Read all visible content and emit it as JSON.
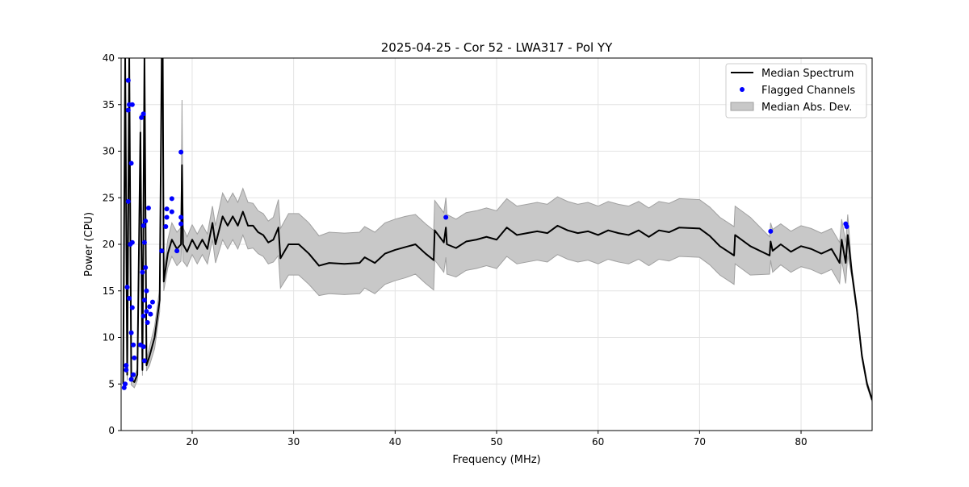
{
  "chart_data": {
    "type": "line",
    "title": "2025-04-25 - Cor 52 - LWA317 - Pol YY",
    "xlabel": "Frequency (MHz)",
    "ylabel": "Power (CPU)",
    "xlim": [
      13,
      87
    ],
    "ylim": [
      0,
      40
    ],
    "xticks": [
      20,
      30,
      40,
      50,
      60,
      70,
      80
    ],
    "yticks": [
      0,
      5,
      10,
      15,
      20,
      25,
      30,
      35,
      40
    ],
    "grid": true,
    "legend_position": "top-right",
    "legend": [
      "Median Spectrum",
      "Flagged Channels",
      "Median Abs. Dev."
    ],
    "colors": {
      "median": "#000000",
      "flagged": "#0000ff",
      "mad_fill": "#c8c8c8",
      "mad_edge": "#a0a0a0"
    },
    "median_spectrum": {
      "x": [
        13.2,
        13.4,
        13.6,
        13.8,
        14.0,
        14.3,
        14.6,
        14.9,
        15.1,
        15.3,
        15.5,
        15.8,
        16.3,
        16.8,
        17.0,
        17.1,
        17.2,
        17.6,
        18,
        18.5,
        18.9,
        19.0,
        19.1,
        19.5,
        20,
        20.5,
        21,
        21.5,
        22,
        22.3,
        23,
        23.5,
        24,
        24.5,
        25,
        25.5,
        26,
        26.5,
        27,
        27.5,
        28,
        28.5,
        28.7,
        29.5,
        30.5,
        31.5,
        32.5,
        33.5,
        35,
        36.5,
        37,
        38,
        39,
        40,
        41,
        42,
        43,
        43.8,
        43.9,
        44.8,
        45,
        45.1,
        46,
        47,
        48,
        49,
        50,
        51,
        52,
        53,
        54,
        55,
        56,
        57,
        58,
        59,
        60,
        61,
        62,
        63,
        64,
        65,
        66,
        67,
        68,
        70,
        71,
        72,
        73.4,
        73.5,
        75,
        76.9,
        77,
        77.2,
        78,
        79,
        80,
        81,
        82,
        83,
        83.8,
        84,
        84.4,
        84.6,
        85,
        85.5,
        86,
        86.5,
        87
      ],
      "y": [
        5,
        40,
        6,
        40,
        5.5,
        5.2,
        6,
        32,
        6.5,
        40,
        7,
        8,
        10,
        14,
        40,
        40,
        16,
        19,
        20.5,
        19.5,
        20,
        28.5,
        20,
        19.2,
        20.5,
        19.5,
        20.5,
        19.5,
        22.3,
        20,
        23,
        22,
        23,
        22,
        23.5,
        22,
        22,
        21.3,
        21,
        20.2,
        20.5,
        21.8,
        18.5,
        20,
        20,
        19,
        17.7,
        18,
        17.9,
        18,
        18.6,
        18,
        19,
        19.4,
        19.7,
        20,
        19,
        18.3,
        21.5,
        20.2,
        21.8,
        20,
        19.6,
        20.3,
        20.5,
        20.8,
        20.5,
        21.8,
        21,
        21.2,
        21.4,
        21.2,
        22,
        21.5,
        21.2,
        21.4,
        21,
        21.5,
        21.2,
        21,
        21.5,
        20.8,
        21.5,
        21.3,
        21.8,
        21.7,
        20.9,
        19.8,
        18.8,
        21,
        19.8,
        18.8,
        20.3,
        19.3,
        20,
        19.2,
        19.8,
        19.5,
        19,
        19.5,
        18,
        20.5,
        18,
        21,
        17,
        13,
        8,
        5,
        3.3
      ],
      "mad": [
        0.6,
        0.6,
        0.6,
        0.6,
        0.6,
        0.6,
        0.6,
        2,
        0.6,
        0.6,
        0.6,
        1,
        1.2,
        1.2,
        0.6,
        0.6,
        1,
        1.5,
        1.8,
        1.8,
        1.8,
        7,
        1.8,
        1.6,
        1.6,
        1.6,
        1.6,
        1.6,
        1.8,
        2,
        2.5,
        2.5,
        2.5,
        2.5,
        2.5,
        2.5,
        2.4,
        2.3,
        2.3,
        2.3,
        2.4,
        3,
        3.2,
        3.3,
        3.3,
        3.3,
        3.2,
        3.3,
        3.3,
        3.3,
        3.3,
        3.3,
        3.3,
        3.3,
        3.3,
        3.2,
        3.2,
        3.2,
        3.2,
        3.2,
        3.2,
        3.2,
        3.1,
        3.1,
        3.1,
        3.1,
        3.1,
        3.1,
        3.1,
        3.1,
        3.1,
        3.1,
        3.1,
        3.1,
        3.1,
        3.1,
        3.1,
        3.1,
        3.1,
        3.1,
        3.1,
        3.1,
        3.1,
        3.1,
        3.1,
        3.1,
        3.1,
        3.1,
        3.1,
        3.1,
        3.1,
        2,
        2,
        2.3,
        2.2,
        2.2,
        2.2,
        2.2,
        2.2,
        2.2,
        2.2,
        2.2,
        2.2,
        2.2,
        0.5,
        0.4,
        0.3,
        0.3,
        0.2
      ]
    },
    "flagged_channels": {
      "x": [
        13.3,
        13.4,
        13.5,
        13.5,
        13.6,
        13.7,
        13.7,
        13.7,
        13.8,
        13.8,
        13.9,
        14.0,
        14.0,
        14.1,
        14.1,
        14.1,
        14.0,
        14.2,
        14.2,
        14.3,
        14.9,
        15.0,
        15.2,
        15.1,
        15.2,
        15.2,
        15.3,
        15.3,
        15.4,
        15.4,
        15.5,
        15.5,
        15.6,
        15.7,
        15.8,
        15.9,
        16.1,
        15.3,
        15.2,
        17.0,
        17.5,
        17.5,
        17.4,
        18.0,
        18.0,
        18.5,
        18.9,
        18.9,
        18.9,
        45.0,
        77.0,
        84.4,
        84.5
      ],
      "y": [
        4.6,
        5.0,
        6.5,
        7.0,
        15.4,
        37.6,
        34.4,
        24.6,
        35.0,
        14.2,
        20.0,
        28.7,
        10.5,
        35.0,
        20.2,
        13.2,
        5.5,
        9.2,
        6.0,
        7.8,
        9.2,
        33.6,
        34.0,
        17.0,
        12.3,
        22.0,
        20.2,
        14.0,
        17.5,
        22.5,
        15.0,
        12.8,
        11.6,
        23.9,
        13.3,
        12.5,
        13.8,
        7.5,
        9.0,
        19.3,
        23.8,
        22.9,
        21.9,
        24.9,
        23.5,
        19.3,
        29.9,
        22.9,
        22.2,
        22.9,
        21.4,
        22.2,
        21.9
      ]
    }
  }
}
